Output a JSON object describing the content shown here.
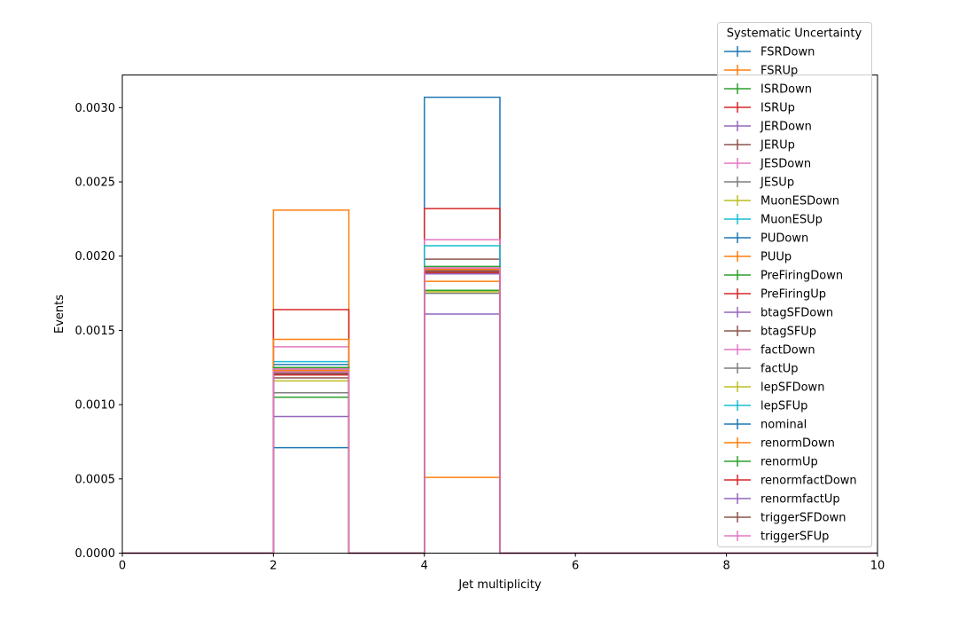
{
  "chart_data": {
    "type": "step-histogram",
    "xlabel": "Jet multiplicity",
    "ylabel": "Events",
    "xlim": [
      0,
      10
    ],
    "ylim": [
      0,
      0.00322
    ],
    "x_ticks": [
      0,
      2,
      4,
      6,
      8,
      10
    ],
    "y_ticks": [
      0.0,
      0.0005,
      0.001,
      0.0015,
      0.002,
      0.0025,
      0.003
    ],
    "y_tick_labels": [
      "0.0000",
      "0.0005",
      "0.0010",
      "0.0015",
      "0.0020",
      "0.0025",
      "0.0030"
    ],
    "bin_edges": [
      0,
      1,
      2,
      3,
      4,
      5,
      6,
      7,
      8,
      9,
      10
    ],
    "grid": false,
    "legend": {
      "title": "Systematic Uncertainty",
      "placement": "upper-right-outside"
    },
    "series": [
      {
        "name": "FSRDown",
        "color": "#1f77b4",
        "values": [
          0,
          0,
          0.00071,
          0,
          0.00307,
          0,
          0,
          0,
          0,
          0
        ]
      },
      {
        "name": "FSRUp",
        "color": "#ff7f0e",
        "values": [
          0,
          0,
          0.00231,
          0,
          0.00051,
          0,
          0,
          0,
          0,
          0
        ]
      },
      {
        "name": "ISRDown",
        "color": "#2ca02c",
        "values": [
          0,
          0,
          0.00105,
          0,
          0.00177,
          0,
          0,
          0,
          0,
          0
        ]
      },
      {
        "name": "ISRUp",
        "color": "#d62728",
        "values": [
          0,
          0,
          0.00164,
          0,
          0.00232,
          0,
          0,
          0,
          0,
          0
        ]
      },
      {
        "name": "JERDown",
        "color": "#9467bd",
        "values": [
          0,
          0,
          0.00092,
          0,
          0.00161,
          0,
          0,
          0,
          0,
          0
        ]
      },
      {
        "name": "JERUp",
        "color": "#8c564b",
        "values": [
          0,
          0,
          0.00118,
          0,
          0.00198,
          0,
          0,
          0,
          0,
          0
        ]
      },
      {
        "name": "JESDown",
        "color": "#e377c2",
        "values": [
          0,
          0,
          0.00139,
          0,
          0.00211,
          0,
          0,
          0,
          0,
          0
        ]
      },
      {
        "name": "JESUp",
        "color": "#7f7f7f",
        "values": [
          0,
          0,
          0.00108,
          0,
          0.00175,
          0,
          0,
          0,
          0,
          0
        ]
      },
      {
        "name": "MuonESDown",
        "color": "#bcbd22",
        "values": [
          0,
          0,
          0.00116,
          0,
          0.00176,
          0,
          0,
          0,
          0,
          0
        ]
      },
      {
        "name": "MuonESUp",
        "color": "#17becf",
        "values": [
          0,
          0,
          0.00129,
          0,
          0.00207,
          0,
          0,
          0,
          0,
          0
        ]
      },
      {
        "name": "PUDown",
        "color": "#1f77b4",
        "values": [
          0,
          0,
          0.00127,
          0,
          0.00191,
          0,
          0,
          0,
          0,
          0
        ]
      },
      {
        "name": "PUUp",
        "color": "#ff7f0e",
        "values": [
          0,
          0,
          0.00144,
          0,
          0.00183,
          0,
          0,
          0,
          0,
          0
        ]
      },
      {
        "name": "PreFiringDown",
        "color": "#2ca02c",
        "values": [
          0,
          0,
          0.00125,
          0,
          0.00193,
          0,
          0,
          0,
          0,
          0
        ]
      },
      {
        "name": "PreFiringUp",
        "color": "#d62728",
        "values": [
          0,
          0,
          0.00123,
          0,
          0.0019,
          0,
          0,
          0,
          0,
          0
        ]
      },
      {
        "name": "btagSFDown",
        "color": "#9467bd",
        "values": [
          0,
          0,
          0.00121,
          0,
          0.00188,
          0,
          0,
          0,
          0,
          0
        ]
      },
      {
        "name": "btagSFUp",
        "color": "#8c564b",
        "values": [
          0,
          0,
          0.00124,
          0,
          0.00192,
          0,
          0,
          0,
          0,
          0
        ]
      },
      {
        "name": "factDown",
        "color": "#e377c2",
        "values": [
          0,
          0,
          0.00124,
          0,
          0.00192,
          0,
          0,
          0,
          0,
          0
        ]
      },
      {
        "name": "factUp",
        "color": "#7f7f7f",
        "values": [
          0,
          0,
          0.00121,
          0,
          0.00188,
          0,
          0,
          0,
          0,
          0
        ]
      },
      {
        "name": "lepSFDown",
        "color": "#bcbd22",
        "values": [
          0,
          0,
          0.00122,
          0,
          0.00189,
          0,
          0,
          0,
          0,
          0
        ]
      },
      {
        "name": "lepSFUp",
        "color": "#17becf",
        "values": [
          0,
          0,
          0.00123,
          0,
          0.00191,
          0,
          0,
          0,
          0,
          0
        ]
      },
      {
        "name": "nominal",
        "color": "#1f77b4",
        "values": [
          0,
          0,
          0.00122,
          0,
          0.0019,
          0,
          0,
          0,
          0,
          0
        ]
      },
      {
        "name": "renormDown",
        "color": "#ff7f0e",
        "values": [
          0,
          0,
          0.00123,
          0,
          0.00191,
          0,
          0,
          0,
          0,
          0
        ]
      },
      {
        "name": "renormUp",
        "color": "#2ca02c",
        "values": [
          0,
          0,
          0.00121,
          0,
          0.00189,
          0,
          0,
          0,
          0,
          0
        ]
      },
      {
        "name": "renormfactDown",
        "color": "#d62728",
        "values": [
          0,
          0,
          0.0012,
          0,
          0.00189,
          0,
          0,
          0,
          0,
          0
        ]
      },
      {
        "name": "renormfactUp",
        "color": "#9467bd",
        "values": [
          0,
          0,
          0.00121,
          0,
          0.00188,
          0,
          0,
          0,
          0,
          0
        ]
      },
      {
        "name": "triggerSFDown",
        "color": "#8c564b",
        "values": [
          0,
          0,
          0.00121,
          0,
          0.0019,
          0,
          0,
          0,
          0,
          0
        ]
      },
      {
        "name": "triggerSFUp",
        "color": "#e377c2",
        "values": [
          0,
          0,
          0.00122,
          0,
          0.00192,
          0,
          0,
          0,
          0,
          0
        ]
      }
    ]
  }
}
